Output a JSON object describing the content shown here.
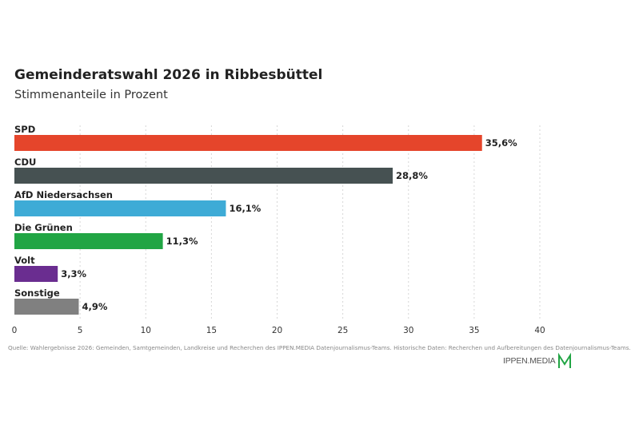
{
  "chart_data": {
    "type": "bar",
    "orientation": "horizontal",
    "title": "Gemeinderatswahl 2026 in Ribbesbüttel",
    "subtitle": "Stimmenanteile in Prozent",
    "categories": [
      "SPD",
      "CDU",
      "AfD Niedersachsen",
      "Die Grünen",
      "Volt",
      "Sonstige"
    ],
    "values": [
      35.6,
      28.8,
      16.1,
      11.3,
      3.3,
      4.9
    ],
    "value_labels": [
      "35,6%",
      "28,8%",
      "16,1%",
      "11,3%",
      "3,3%",
      "4,9%"
    ],
    "colors": [
      "#e5452b",
      "#465152",
      "#3eabd6",
      "#21a544",
      "#6a2d90",
      "#808080"
    ],
    "xlim": [
      0,
      40
    ],
    "xticks": [
      0,
      5,
      10,
      15,
      20,
      25,
      30,
      35,
      40
    ],
    "grid": true
  },
  "source": "Quelle: Wahlergebnisse 2026: Gemeinden, Samtgemeinden, Landkreise und Recherchen des IPPEN.MEDIA Datenjournalismus-Teams. Historische Daten: Recherchen und Aufbereitungen des Datenjournalismus-Teams.",
  "logo": {
    "text": "IPPEN.MEDIA",
    "mark_color": "#21a544"
  }
}
